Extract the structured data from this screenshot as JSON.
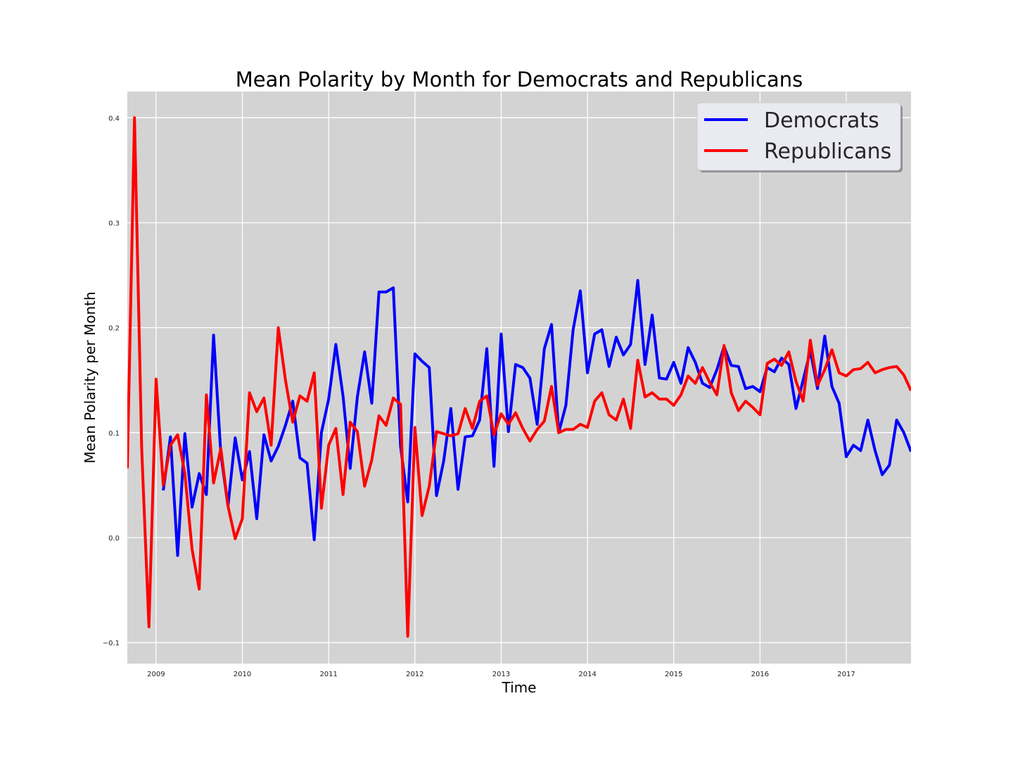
{
  "chart_data": {
    "type": "line",
    "title": "Mean Polarity by Month for Democrats and Republicans",
    "xlabel": "Time",
    "ylabel": "Mean Polarity per Month",
    "xlim": [
      "2008-09",
      "2017-10"
    ],
    "ylim": [
      -0.12,
      0.425
    ],
    "x_ticks": [
      "2009",
      "2010",
      "2011",
      "2012",
      "2013",
      "2014",
      "2015",
      "2016",
      "2017"
    ],
    "y_ticks": [
      -0.1,
      0.0,
      0.1,
      0.2,
      0.3,
      0.4
    ],
    "y_tick_labels": [
      "−0.1",
      "0.0",
      "0.1",
      "0.2",
      "0.3",
      "0.4"
    ],
    "grid": true,
    "background": "#d3d3d3",
    "legend_position": "top-right",
    "series": [
      {
        "name": "Democrats",
        "color": "#0000ff",
        "start": "2009-02",
        "values": [
          0.045,
          0.096,
          -0.017,
          0.099,
          0.029,
          0.061,
          0.041,
          0.193,
          0.08,
          0.03,
          0.095,
          0.055,
          0.082,
          0.018,
          0.098,
          0.073,
          0.087,
          0.107,
          0.13,
          0.076,
          0.071,
          -0.002,
          0.1,
          0.132,
          0.184,
          0.135,
          0.066,
          0.134,
          0.177,
          0.128,
          0.234,
          0.234,
          0.238,
          0.087,
          0.034,
          0.175,
          0.168,
          0.162,
          0.04,
          0.073,
          0.123,
          0.046,
          0.096,
          0.097,
          0.112,
          0.18,
          0.068,
          0.194,
          0.101,
          0.165,
          0.162,
          0.152,
          0.108,
          0.18,
          0.203,
          0.1,
          0.126,
          0.198,
          0.235,
          0.157,
          0.194,
          0.198,
          0.163,
          0.191,
          0.174,
          0.184,
          0.245,
          0.165,
          0.212,
          0.152,
          0.151,
          0.167,
          0.147,
          0.181,
          0.167,
          0.147,
          0.143,
          0.16,
          0.182,
          0.164,
          0.163,
          0.142,
          0.144,
          0.139,
          0.162,
          0.158,
          0.171,
          0.165,
          0.123,
          0.15,
          0.178,
          0.142,
          0.192,
          0.144,
          0.128,
          0.077,
          0.088,
          0.083,
          0.112,
          0.083,
          0.06,
          0.069,
          0.112,
          0.1,
          0.082
        ]
      },
      {
        "name": "Republicans",
        "color": "#ff0000",
        "start": "2008-09",
        "values": [
          0.066,
          0.4,
          0.085,
          -0.085,
          0.151,
          0.05,
          0.088,
          0.098,
          0.061,
          -0.011,
          -0.049,
          0.136,
          0.052,
          0.085,
          0.03,
          -0.001,
          0.018,
          0.138,
          0.12,
          0.133,
          0.088,
          0.2,
          0.15,
          0.11,
          0.135,
          0.13,
          0.157,
          0.028,
          0.088,
          0.104,
          0.041,
          0.11,
          0.101,
          0.049,
          0.074,
          0.116,
          0.107,
          0.133,
          0.127,
          -0.094,
          0.105,
          0.021,
          0.049,
          0.101,
          0.099,
          0.097,
          0.099,
          0.123,
          0.104,
          0.13,
          0.135,
          0.098,
          0.118,
          0.108,
          0.119,
          0.104,
          0.092,
          0.103,
          0.111,
          0.144,
          0.1,
          0.103,
          0.103,
          0.108,
          0.105,
          0.13,
          0.138,
          0.117,
          0.112,
          0.132,
          0.104,
          0.169,
          0.134,
          0.138,
          0.132,
          0.132,
          0.126,
          0.136,
          0.154,
          0.147,
          0.162,
          0.148,
          0.136,
          0.183,
          0.138,
          0.121,
          0.13,
          0.124,
          0.117,
          0.166,
          0.17,
          0.164,
          0.177,
          0.149,
          0.13,
          0.188,
          0.145,
          0.16,
          0.179,
          0.157,
          0.154,
          0.16,
          0.161,
          0.167,
          0.157,
          0.16,
          0.162,
          0.163,
          0.155,
          0.14
        ]
      }
    ]
  }
}
